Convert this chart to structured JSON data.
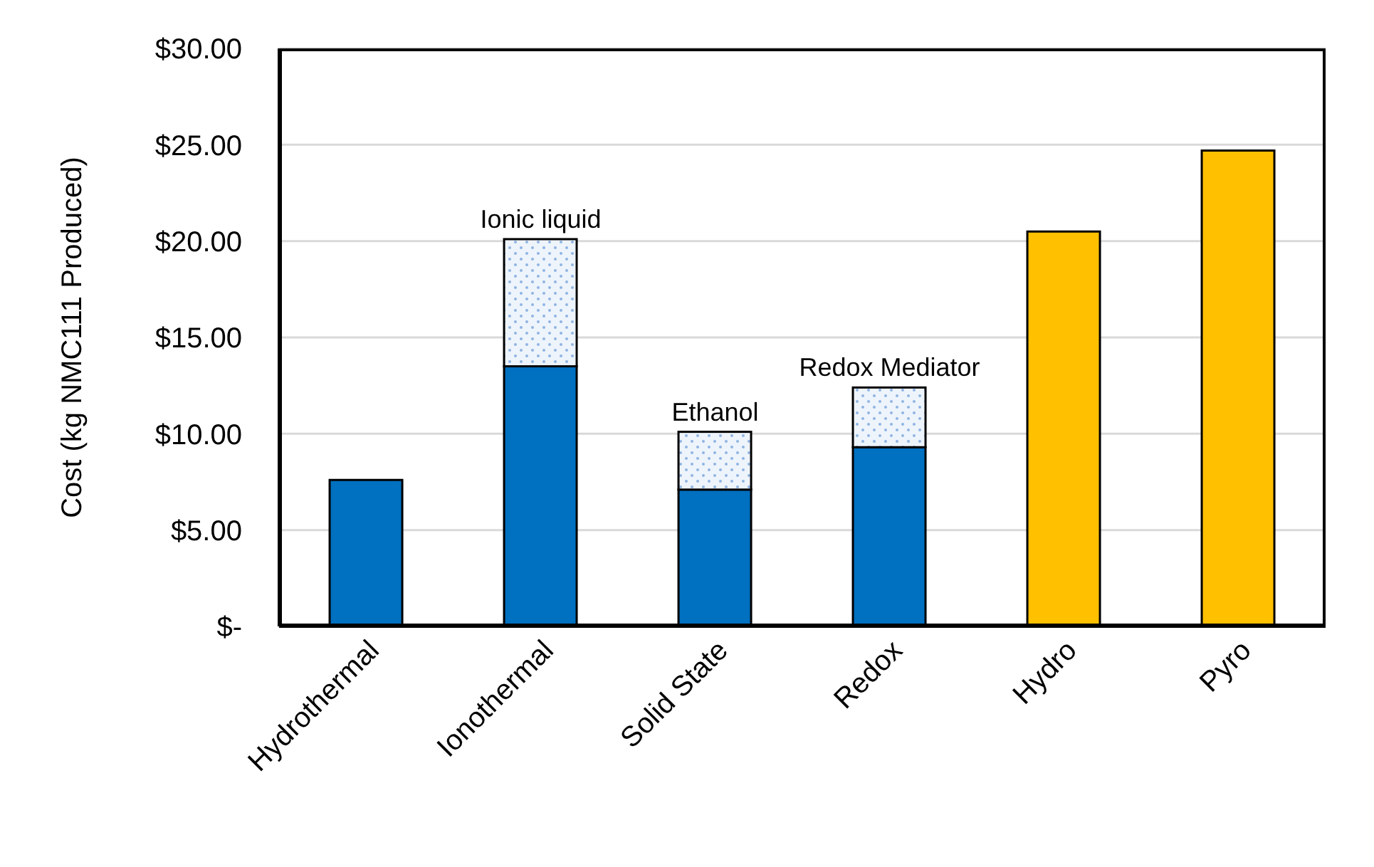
{
  "chart_data": {
    "type": "bar",
    "ylabel": "Cost (kg NMC111 Produced)",
    "categories": [
      "Hydrothermal",
      "Ionothermal",
      "Solid State",
      "Redox",
      "Hydro",
      "Pyro"
    ],
    "stacked": true,
    "series": [
      {
        "color": "#0070c0",
        "colors": [
          "#0070c0",
          "#0070c0",
          "#0070c0",
          "#0070c0",
          "#ffc000",
          "#ffc000"
        ],
        "values": [
          7.6,
          13.5,
          7.1,
          9.3,
          20.5,
          24.7
        ]
      },
      {
        "color": "#8fb4e3",
        "values": [
          null,
          6.6,
          3.0,
          3.1,
          null,
          null
        ]
      }
    ],
    "ylim": [
      0,
      30
    ],
    "yticks": [
      {
        "value": 0,
        "label": "$-"
      },
      {
        "value": 5,
        "label": "$5.00"
      },
      {
        "value": 10,
        "label": "$10.00"
      },
      {
        "value": 15,
        "label": "$15.00"
      },
      {
        "value": 20,
        "label": "$20.00"
      },
      {
        "value": 25,
        "label": "$25.00"
      },
      {
        "value": 30,
        "label": "$30.00"
      }
    ],
    "grid": "y",
    "annotations": [
      {
        "text": "Ionic liquid",
        "x": "Ionothermal",
        "y": 20.1
      },
      {
        "text": "Ethanol",
        "x": "Solid State",
        "y": 10.1
      },
      {
        "text": "Redox Mediator",
        "x": "Redox",
        "y": 12.4
      }
    ]
  }
}
